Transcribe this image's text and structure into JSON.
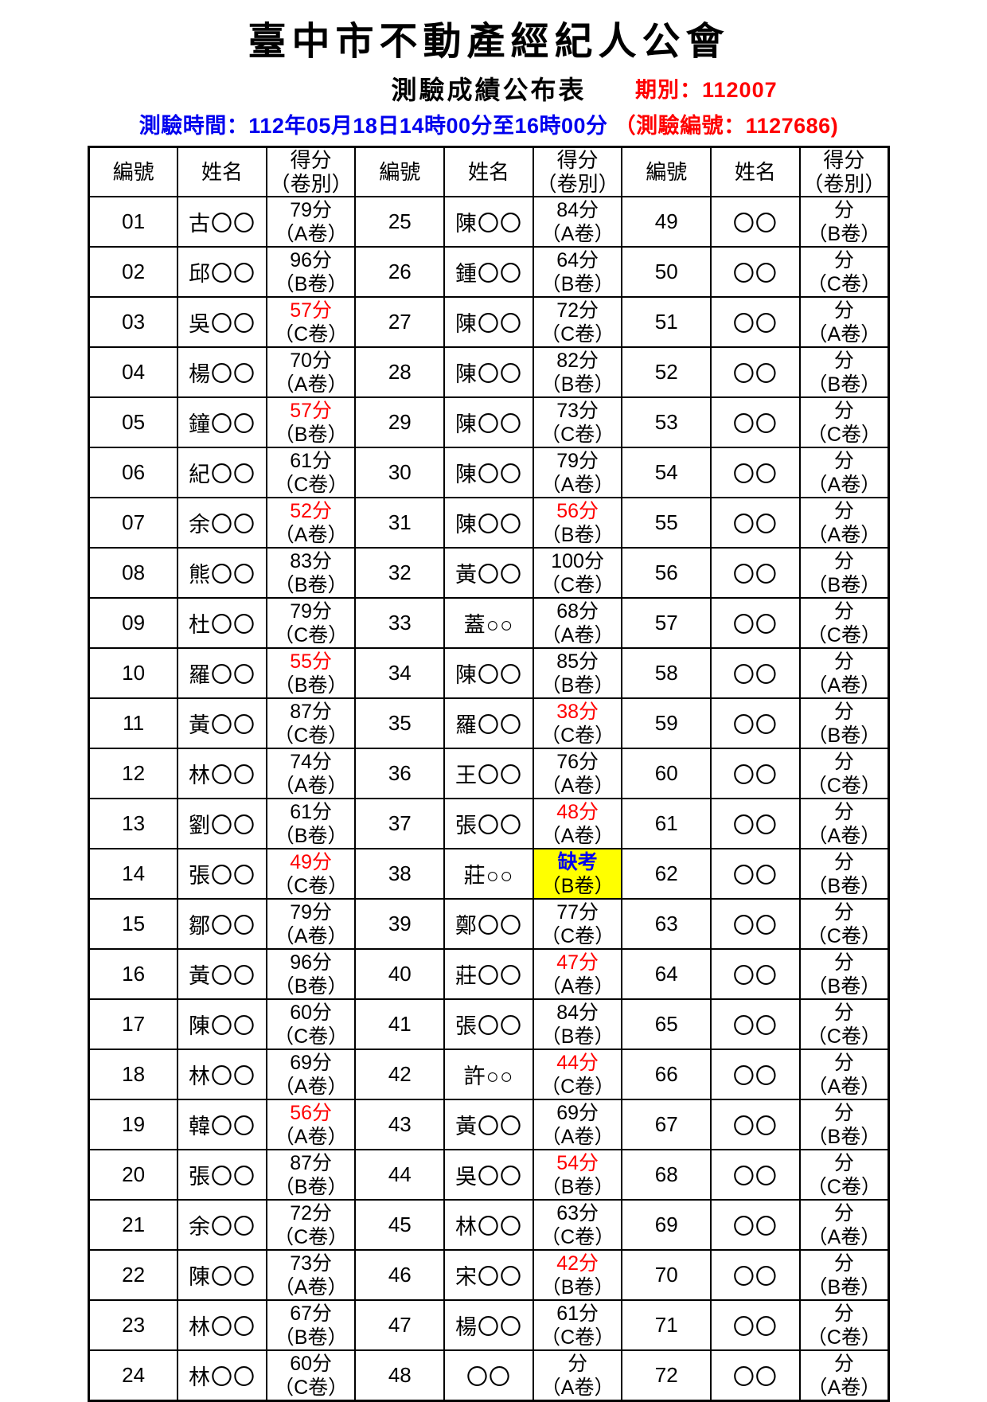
{
  "header": {
    "title": "臺中市不動產經紀人公會",
    "subtitle": "測驗成績公布表",
    "period": "期別：112007",
    "time": "測驗時間：112年05月18日14時00分至16時00分",
    "exam_no": "（測驗編號：1127686)"
  },
  "colors": {
    "fail_score": "#ff0000",
    "absent_text": "#0000ee",
    "absent_background": "#ffff00",
    "time_text": "#0000ee",
    "period_text": "#ff0000"
  },
  "table": {
    "headers": {
      "num": "編號",
      "name": "姓名",
      "score_line1": "得分",
      "score_line2": "（卷別）"
    },
    "rows": [
      [
        [
          "01",
          "古〇〇",
          "79分",
          "（A卷）",
          "normal"
        ],
        [
          "25",
          "陳〇〇",
          "84分",
          "（A卷）",
          "normal"
        ],
        [
          "49",
          "〇〇",
          "分",
          "（B卷）",
          "normal"
        ]
      ],
      [
        [
          "02",
          "邱〇〇",
          "96分",
          "（B卷）",
          "normal"
        ],
        [
          "26",
          "鍾〇〇",
          "64分",
          "（B卷）",
          "normal"
        ],
        [
          "50",
          "〇〇",
          "分",
          "（C卷）",
          "normal"
        ]
      ],
      [
        [
          "03",
          "吳〇〇",
          "57分",
          "（C卷）",
          "fail"
        ],
        [
          "27",
          "陳〇〇",
          "72分",
          "（C卷）",
          "normal"
        ],
        [
          "51",
          "〇〇",
          "分",
          "（A卷）",
          "normal"
        ]
      ],
      [
        [
          "04",
          "楊〇〇",
          "70分",
          "（A卷）",
          "normal"
        ],
        [
          "28",
          "陳〇〇",
          "82分",
          "（B卷）",
          "normal"
        ],
        [
          "52",
          "〇〇",
          "分",
          "（B卷）",
          "normal"
        ]
      ],
      [
        [
          "05",
          "鐘〇〇",
          "57分",
          "（B卷）",
          "fail"
        ],
        [
          "29",
          "陳〇〇",
          "73分",
          "（C卷）",
          "normal"
        ],
        [
          "53",
          "〇〇",
          "分",
          "（C卷）",
          "normal"
        ]
      ],
      [
        [
          "06",
          "紀〇〇",
          "61分",
          "（C卷）",
          "normal"
        ],
        [
          "30",
          "陳〇〇",
          "79分",
          "（A卷）",
          "normal"
        ],
        [
          "54",
          "〇〇",
          "分",
          "（A卷）",
          "normal"
        ]
      ],
      [
        [
          "07",
          "余〇〇",
          "52分",
          "（A卷）",
          "fail"
        ],
        [
          "31",
          "陳〇〇",
          "56分",
          "（B卷）",
          "fail"
        ],
        [
          "55",
          "〇〇",
          "分",
          "（A卷）",
          "normal"
        ]
      ],
      [
        [
          "08",
          "熊〇〇",
          "83分",
          "（B卷）",
          "normal"
        ],
        [
          "32",
          "黃〇〇",
          "100分",
          "（C卷）",
          "normal"
        ],
        [
          "56",
          "〇〇",
          "分",
          "（B卷）",
          "normal"
        ]
      ],
      [
        [
          "09",
          "杜〇〇",
          "79分",
          "（C卷）",
          "normal"
        ],
        [
          "33",
          "蓋○○",
          "68分",
          "（A卷）",
          "normal"
        ],
        [
          "57",
          "〇〇",
          "分",
          "（C卷）",
          "normal"
        ]
      ],
      [
        [
          "10",
          "羅〇〇",
          "55分",
          "（B卷）",
          "fail"
        ],
        [
          "34",
          "陳〇〇",
          "85分",
          "（B卷）",
          "normal"
        ],
        [
          "58",
          "〇〇",
          "分",
          "（A卷）",
          "normal"
        ]
      ],
      [
        [
          "11",
          "黃〇〇",
          "87分",
          "（C卷）",
          "normal"
        ],
        [
          "35",
          "羅〇〇",
          "38分",
          "（C卷）",
          "fail"
        ],
        [
          "59",
          "〇〇",
          "分",
          "（B卷）",
          "normal"
        ]
      ],
      [
        [
          "12",
          "林〇〇",
          "74分",
          "（A卷）",
          "normal"
        ],
        [
          "36",
          "王〇〇",
          "76分",
          "（A卷）",
          "normal"
        ],
        [
          "60",
          "〇〇",
          "分",
          "（C卷）",
          "normal"
        ]
      ],
      [
        [
          "13",
          "劉〇〇",
          "61分",
          "（B卷）",
          "normal"
        ],
        [
          "37",
          "張〇〇",
          "48分",
          "（A卷）",
          "fail"
        ],
        [
          "61",
          "〇〇",
          "分",
          "（A卷）",
          "normal"
        ]
      ],
      [
        [
          "14",
          "張〇〇",
          "49分",
          "（C卷）",
          "fail"
        ],
        [
          "38",
          "莊○○",
          "缺考",
          "（B卷）",
          "absent"
        ],
        [
          "62",
          "〇〇",
          "分",
          "（B卷）",
          "normal"
        ]
      ],
      [
        [
          "15",
          "鄒〇〇",
          "79分",
          "（A卷）",
          "normal"
        ],
        [
          "39",
          "鄭〇〇",
          "77分",
          "（C卷）",
          "normal"
        ],
        [
          "63",
          "〇〇",
          "分",
          "（C卷）",
          "normal"
        ]
      ],
      [
        [
          "16",
          "黃〇〇",
          "96分",
          "（B卷）",
          "normal"
        ],
        [
          "40",
          "莊〇〇",
          "47分",
          "（A卷）",
          "fail"
        ],
        [
          "64",
          "〇〇",
          "分",
          "（B卷）",
          "normal"
        ]
      ],
      [
        [
          "17",
          "陳〇〇",
          "60分",
          "（C卷）",
          "normal"
        ],
        [
          "41",
          "張〇〇",
          "84分",
          "（B卷）",
          "normal"
        ],
        [
          "65",
          "〇〇",
          "分",
          "（C卷）",
          "normal"
        ]
      ],
      [
        [
          "18",
          "林〇〇",
          "69分",
          "（A卷）",
          "normal"
        ],
        [
          "42",
          "許○○",
          "44分",
          "（C卷）",
          "fail"
        ],
        [
          "66",
          "〇〇",
          "分",
          "（A卷）",
          "normal"
        ]
      ],
      [
        [
          "19",
          "韓〇〇",
          "56分",
          "（A卷）",
          "fail"
        ],
        [
          "43",
          "黃〇〇",
          "69分",
          "（A卷）",
          "normal"
        ],
        [
          "67",
          "〇〇",
          "分",
          "（B卷）",
          "normal"
        ]
      ],
      [
        [
          "20",
          "張〇〇",
          "87分",
          "（B卷）",
          "normal"
        ],
        [
          "44",
          "吳〇〇",
          "54分",
          "（B卷）",
          "fail"
        ],
        [
          "68",
          "〇〇",
          "分",
          "（C卷）",
          "normal"
        ]
      ],
      [
        [
          "21",
          "余〇〇",
          "72分",
          "（C卷）",
          "normal"
        ],
        [
          "45",
          "林〇〇",
          "63分",
          "（C卷）",
          "normal"
        ],
        [
          "69",
          "〇〇",
          "分",
          "（A卷）",
          "normal"
        ]
      ],
      [
        [
          "22",
          "陳〇〇",
          "73分",
          "（A卷）",
          "normal"
        ],
        [
          "46",
          "宋〇〇",
          "42分",
          "（B卷）",
          "fail"
        ],
        [
          "70",
          "〇〇",
          "分",
          "（B卷）",
          "normal"
        ]
      ],
      [
        [
          "23",
          "林〇〇",
          "67分",
          "（B卷）",
          "normal"
        ],
        [
          "47",
          "楊〇〇",
          "61分",
          "（C卷）",
          "normal"
        ],
        [
          "71",
          "〇〇",
          "分",
          "（C卷）",
          "normal"
        ]
      ],
      [
        [
          "24",
          "林〇〇",
          "60分",
          "（C卷）",
          "normal"
        ],
        [
          "48",
          "〇〇",
          "分",
          "（A卷）",
          "normal"
        ],
        [
          "72",
          "〇〇",
          "分",
          "（A卷）",
          "normal"
        ]
      ]
    ]
  }
}
